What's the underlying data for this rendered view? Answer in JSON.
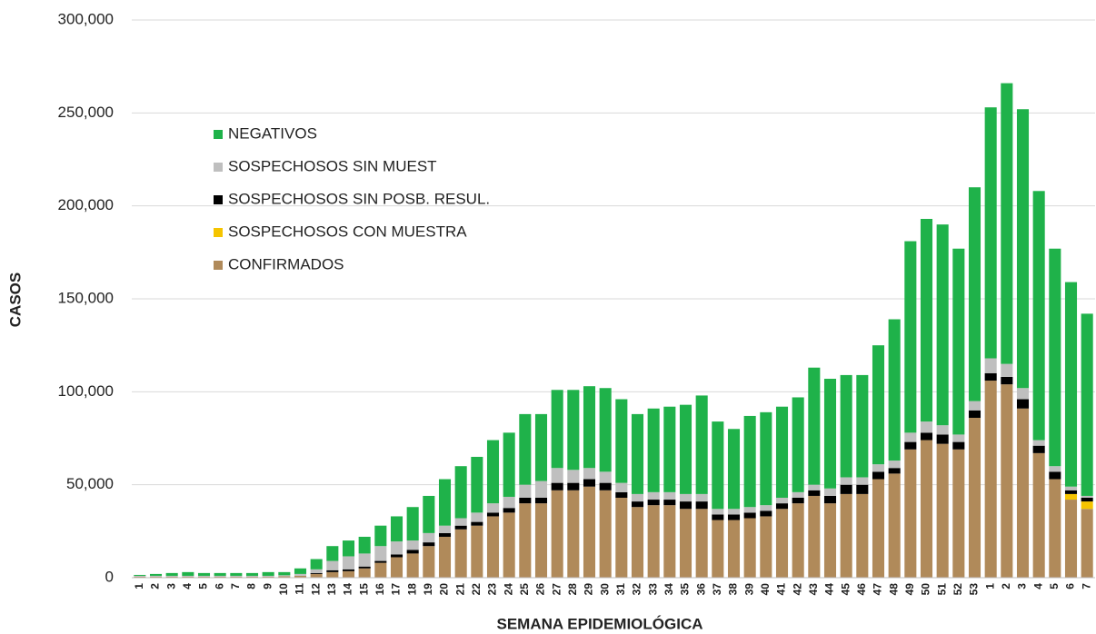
{
  "chart_data": {
    "type": "stacked_bar",
    "x_label": "SEMANA EPIDEMIOLÓGICA",
    "y_label": "CASOS",
    "categories": [
      "1",
      "2",
      "3",
      "4",
      "5",
      "6",
      "7",
      "8",
      "9",
      "10",
      "11",
      "12",
      "13",
      "14",
      "15",
      "16",
      "17",
      "18",
      "19",
      "20",
      "21",
      "22",
      "23",
      "24",
      "25",
      "26",
      "27",
      "28",
      "29",
      "30",
      "31",
      "32",
      "33",
      "34",
      "35",
      "36",
      "37",
      "38",
      "39",
      "40",
      "41",
      "42",
      "43",
      "44",
      "45",
      "46",
      "47",
      "48",
      "49",
      "50",
      "51",
      "52",
      "53",
      "1",
      "2",
      "3",
      "4",
      "5",
      "6",
      "7"
    ],
    "series": [
      {
        "name": "CONFIRMADOS",
        "color": "#b08a5a",
        "values": [
          500,
          500,
          500,
          500,
          500,
          500,
          500,
          500,
          500,
          800,
          1000,
          2000,
          3000,
          3500,
          5000,
          8000,
          11000,
          13000,
          17000,
          22000,
          26000,
          28000,
          33000,
          35000,
          40000,
          40000,
          47000,
          47000,
          49000,
          47000,
          43000,
          38000,
          39000,
          39000,
          37000,
          37000,
          31000,
          31000,
          32000,
          33000,
          37000,
          40000,
          44000,
          40000,
          45000,
          45000,
          53000,
          56000,
          69000,
          74000,
          72000,
          69000,
          86000,
          106000,
          104000,
          91000,
          67000,
          53000,
          42000,
          37000
        ]
      },
      {
        "name": "SOSPECHOSOS CON MUESTRA",
        "color": "#f5c400",
        "values": [
          0,
          0,
          0,
          0,
          0,
          0,
          0,
          0,
          0,
          0,
          0,
          0,
          0,
          0,
          0,
          0,
          0,
          0,
          0,
          0,
          0,
          0,
          0,
          0,
          0,
          0,
          0,
          0,
          0,
          0,
          0,
          0,
          0,
          0,
          0,
          0,
          0,
          0,
          0,
          0,
          0,
          0,
          0,
          0,
          0,
          0,
          0,
          0,
          0,
          0,
          0,
          0,
          0,
          0,
          0,
          0,
          0,
          0,
          3000,
          4000
        ]
      },
      {
        "name": "SOSPECHOSOS SIN POSB. RESUL.",
        "color": "#000000",
        "values": [
          0,
          0,
          0,
          0,
          0,
          0,
          0,
          0,
          0,
          0,
          0,
          500,
          1000,
          1000,
          1000,
          1000,
          1500,
          2000,
          2000,
          2000,
          2000,
          2000,
          2000,
          2500,
          3000,
          3000,
          4000,
          4000,
          4000,
          4000,
          3000,
          3000,
          3000,
          3000,
          4000,
          4000,
          3000,
          3000,
          3000,
          3000,
          3000,
          3000,
          3000,
          4000,
          5000,
          5000,
          4000,
          3000,
          4000,
          4000,
          5000,
          4000,
          4000,
          4000,
          4000,
          5000,
          4000,
          4000,
          2000,
          2000
        ]
      },
      {
        "name": "SOSPECHOSOS SIN MUEST",
        "color": "#bfbfbf",
        "values": [
          500,
          500,
          500,
          500,
          500,
          500,
          500,
          500,
          500,
          500,
          1000,
          2000,
          5000,
          7000,
          7000,
          8000,
          7000,
          5000,
          5000,
          4000,
          4000,
          5000,
          5000,
          6000,
          7000,
          9000,
          8000,
          7000,
          6000,
          6000,
          5000,
          4000,
          4000,
          4000,
          4000,
          4000,
          3000,
          3000,
          3000,
          3000,
          3000,
          3000,
          3000,
          4000,
          4000,
          4000,
          4000,
          4000,
          5000,
          6000,
          5000,
          4000,
          5000,
          8000,
          7000,
          6000,
          3000,
          3000,
          2000,
          1000
        ]
      },
      {
        "name": "NEGATIVOS",
        "color": "#1fb24a",
        "values": [
          500,
          1000,
          1500,
          2000,
          1500,
          1500,
          1500,
          1500,
          2000,
          1700,
          3000,
          5500,
          8000,
          8500,
          9000,
          11000,
          13500,
          18000,
          20000,
          25000,
          28000,
          30000,
          34000,
          34500,
          38000,
          36000,
          42000,
          43000,
          44000,
          45000,
          45000,
          43000,
          45000,
          46000,
          48000,
          53000,
          47000,
          43000,
          49000,
          50000,
          49000,
          51000,
          63000,
          59000,
          55000,
          55000,
          64000,
          76000,
          103000,
          109000,
          108000,
          100000,
          115000,
          135000,
          151000,
          150000,
          134000,
          117000,
          110000,
          98000
        ]
      }
    ],
    "ylim": [
      0,
      300000
    ],
    "yticks": [
      0,
      {
        "value": 50000,
        "label": "50,000"
      },
      {
        "value": 100000,
        "label": "100,000"
      },
      {
        "value": 150000,
        "label": "150,000"
      },
      {
        "value": 200000,
        "label": "200,000"
      },
      {
        "value": 250000,
        "label": "250,000"
      },
      {
        "value": 300000,
        "label": "300,000"
      }
    ],
    "grid": true,
    "legend": "upper-left"
  }
}
